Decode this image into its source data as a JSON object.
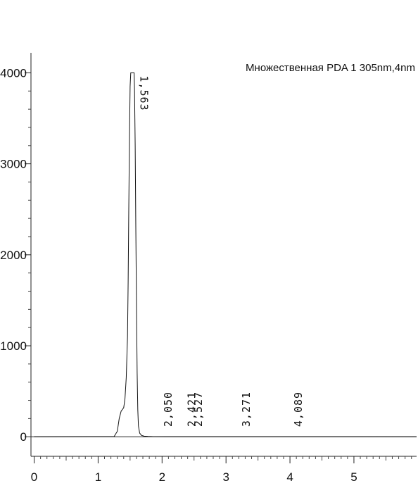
{
  "chart_data": {
    "type": "line",
    "title": "",
    "xlabel": "",
    "ylabel": "",
    "xlim": [
      -0.05,
      5.98
    ],
    "ylim": [
      -215,
      4220
    ],
    "x_ticks": [
      0,
      1,
      2,
      3,
      4,
      5
    ],
    "y_ticks": [
      0,
      1000,
      2000,
      3000,
      4000
    ],
    "x_tick_labels": [
      "0",
      "1",
      "2",
      "3",
      "4",
      "5"
    ],
    "y_tick_labels": [
      "0",
      "1000",
      "2000",
      "3000",
      "4000"
    ],
    "legend": "Множественная PDA 1 305nm,4nm",
    "legend_position": "top-right",
    "grid": false,
    "baseline": 0,
    "series": [
      {
        "x": [
          0.0,
          1.25,
          1.3,
          1.33,
          1.36,
          1.4,
          1.42,
          1.44,
          1.46,
          1.47,
          1.48,
          1.49,
          1.5,
          1.51,
          1.52,
          1.53,
          1.55,
          1.563,
          1.57,
          1.58,
          1.59,
          1.6,
          1.61,
          1.62,
          1.63,
          1.65,
          1.68,
          1.72,
          1.78,
          1.85,
          2.05,
          2.42,
          2.52,
          3.27,
          4.09,
          5.98
        ],
        "values": [
          0,
          2,
          60,
          200,
          280,
          320,
          420,
          650,
          1100,
          1700,
          2500,
          3300,
          3850,
          4000,
          4000,
          4000,
          4000,
          4000,
          3800,
          3200,
          2300,
          1400,
          700,
          300,
          120,
          40,
          15,
          6,
          3,
          2,
          1,
          1,
          1,
          1,
          1,
          0
        ]
      }
    ],
    "peaks": [
      {
        "label": "1,563",
        "x": 1.563,
        "y": 4000
      },
      {
        "label": "2,050",
        "x": 2.05,
        "y": 1
      },
      {
        "label": "2,421",
        "x": 2.421,
        "y": 1
      },
      {
        "label": "2,527",
        "x": 2.527,
        "y": 1
      },
      {
        "label": "3,271",
        "x": 3.271,
        "y": 1
      },
      {
        "label": "4,089",
        "x": 4.089,
        "y": 1
      }
    ]
  }
}
